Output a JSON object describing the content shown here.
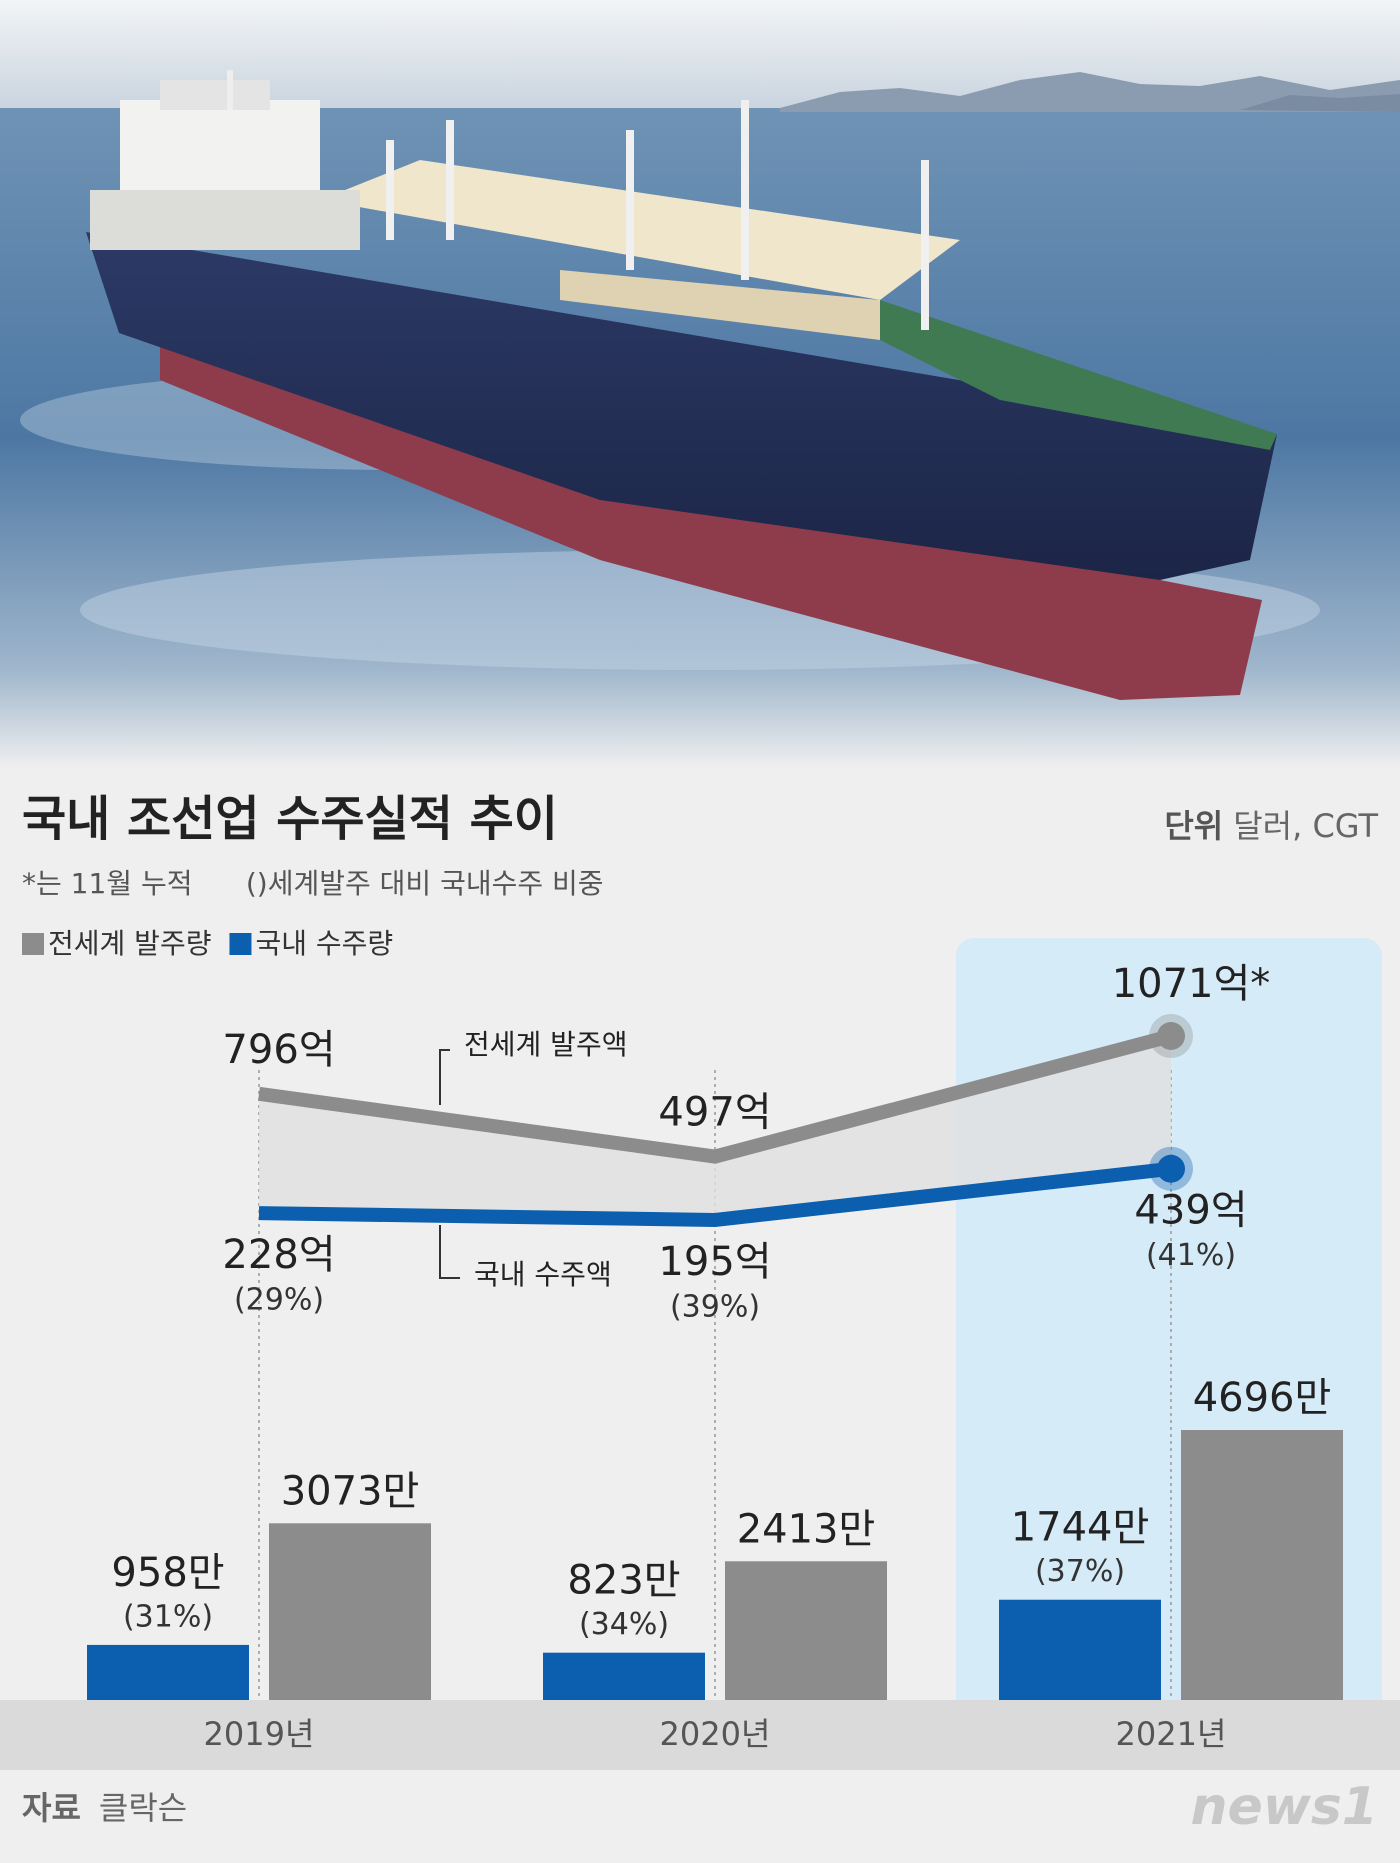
{
  "header": {
    "title": "국내 조선업 수주실적 추이",
    "unit_label": "단위",
    "unit": "달러, CGT",
    "note": "*는 11월 누적      ()세계발주 대비 국내수주 비중"
  },
  "chart_data": [
    {
      "type": "line",
      "series": [
        {
          "name": "전세계 발주액",
          "color": "#8c8c8c",
          "values": [
            796,
            497,
            1071
          ],
          "value_labels": [
            "796억",
            "497억",
            "1071억*"
          ]
        },
        {
          "name": "국내 수주액",
          "color": "#0b5fae",
          "values": [
            228,
            195,
            439
          ],
          "value_labels": [
            "228억",
            "195억",
            "439억"
          ],
          "shares": [
            29,
            39,
            41
          ],
          "share_labels": [
            "(29%)",
            "(39%)",
            "(41%)"
          ]
        }
      ]
    },
    {
      "type": "bar",
      "categories": [
        "2019년",
        "2020년",
        "2021년"
      ],
      "series": [
        {
          "name": "전세계 발주량",
          "color": "#8c8c8c",
          "values": [
            3073,
            2413,
            4696
          ],
          "value_labels": [
            "3073만",
            "2413만",
            "4696만"
          ]
        },
        {
          "name": "국내 수주량",
          "color": "#0b5fae",
          "values": [
            958,
            823,
            1744
          ],
          "value_labels": [
            "958만",
            "823만",
            "1744만"
          ],
          "shares": [
            31,
            34,
            37
          ],
          "share_labels": [
            "(31%)",
            "(34%)",
            "(37%)"
          ]
        }
      ]
    }
  ],
  "source": {
    "label": "자료",
    "text": "클락슨"
  },
  "logo": "news1"
}
